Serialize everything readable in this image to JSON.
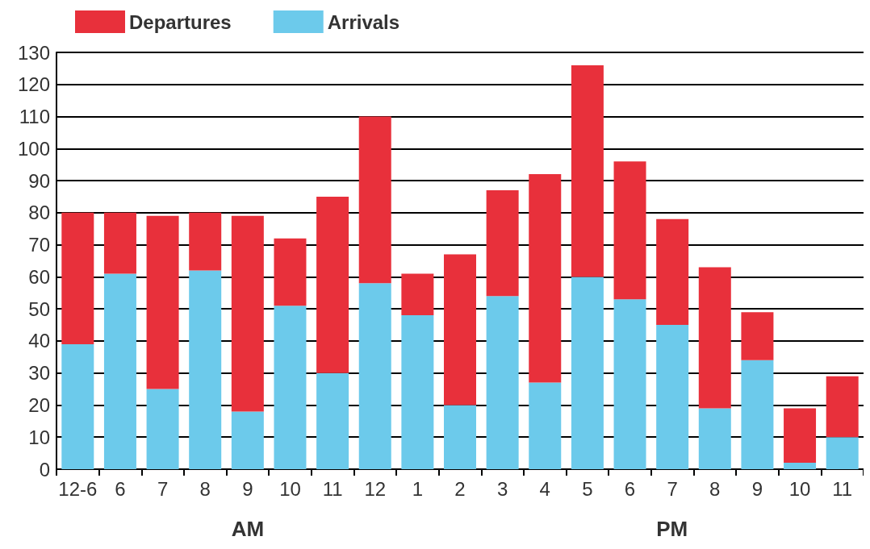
{
  "chart_data": {
    "type": "bar",
    "stacked": true,
    "categories": [
      "12-6",
      "6",
      "7",
      "8",
      "9",
      "10",
      "11",
      "12",
      "1",
      "2",
      "3",
      "4",
      "5",
      "6",
      "7",
      "8",
      "9",
      "10",
      "11"
    ],
    "series": [
      {
        "name": "Arrivals",
        "color": "#6ccaeb",
        "values": [
          39,
          61,
          25,
          62,
          18,
          51,
          30,
          58,
          48,
          20,
          54,
          27,
          60,
          53,
          45,
          19,
          34,
          2,
          10
        ]
      },
      {
        "name": "Departures",
        "color": "#e8303b",
        "values": [
          41,
          19,
          54,
          18,
          61,
          21,
          55,
          52,
          13,
          47,
          33,
          65,
          66,
          43,
          33,
          44,
          15,
          17,
          19
        ]
      }
    ],
    "ylim": [
      0,
      130
    ],
    "yticks": [
      0,
      10,
      20,
      30,
      40,
      50,
      60,
      70,
      80,
      90,
      100,
      110,
      120,
      130
    ],
    "grid": "y",
    "legend": "top left",
    "annotations": [
      "AM",
      "PM"
    ]
  }
}
